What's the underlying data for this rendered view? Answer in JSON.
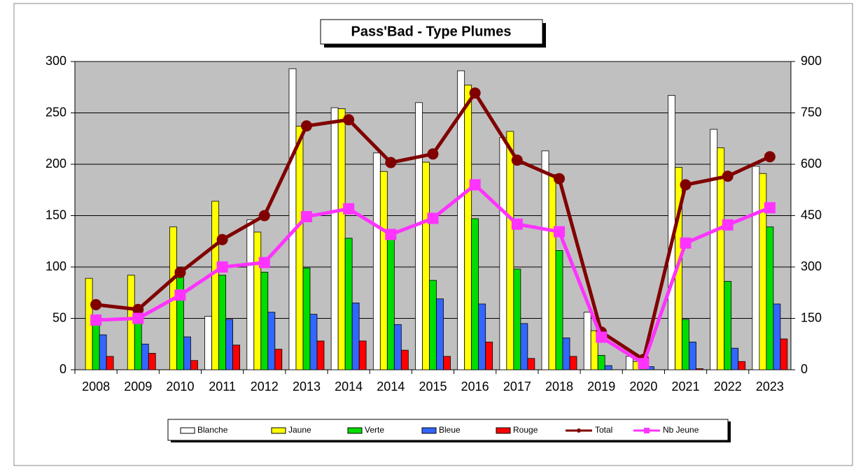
{
  "chart_data": {
    "type": "bar",
    "title": "Pass'Bad - Type Plumes",
    "categories": [
      "2008",
      "2009",
      "2010",
      "2011",
      "2012",
      "2013",
      "2014",
      "2014",
      "2015",
      "2016",
      "2017",
      "2018",
      "2019",
      "2020",
      "2021",
      "2022",
      "2023"
    ],
    "ylim": [
      0,
      300
    ],
    "yticks": [
      0,
      50,
      100,
      150,
      200,
      250,
      300
    ],
    "y2lim": [
      0,
      900
    ],
    "y2ticks": [
      0,
      150,
      300,
      450,
      600,
      750,
      900
    ],
    "grid": true,
    "legend": "bottom",
    "series": [
      {
        "name": "Blanche",
        "type": "bar",
        "color": "#ffffff",
        "values": [
          0,
          0,
          0,
          52,
          146,
          293,
          255,
          211,
          260,
          291,
          226,
          213,
          56,
          13,
          267,
          234,
          198
        ]
      },
      {
        "name": "Jaune",
        "type": "bar",
        "color": "#ffff00",
        "values": [
          89,
          92,
          139,
          164,
          134,
          237,
          254,
          193,
          202,
          277,
          232,
          190,
          38,
          8,
          197,
          216,
          191
        ]
      },
      {
        "name": "Verte",
        "type": "bar",
        "color": "#00dd00",
        "values": [
          49,
          50,
          98,
          92,
          95,
          99,
          128,
          130,
          87,
          147,
          98,
          116,
          14,
          3,
          49,
          86,
          139
        ]
      },
      {
        "name": "Bleue",
        "type": "bar",
        "color": "#3366ff",
        "values": [
          34,
          25,
          32,
          49,
          56,
          54,
          65,
          44,
          69,
          64,
          45,
          31,
          4,
          3,
          27,
          21,
          64
        ]
      },
      {
        "name": "Rouge",
        "type": "bar",
        "color": "#ff0000",
        "values": [
          13,
          16,
          9,
          24,
          20,
          28,
          28,
          19,
          13,
          27,
          11,
          13,
          0,
          0,
          1,
          8,
          30
        ]
      },
      {
        "name": "Total",
        "type": "line",
        "axis": "y2",
        "color": "#800000",
        "values": [
          190,
          176,
          284,
          380,
          450,
          712,
          730,
          605,
          630,
          808,
          612,
          558,
          110,
          30,
          540,
          565,
          622
        ]
      },
      {
        "name": "Nb Jeune",
        "type": "line",
        "axis": "y2",
        "color": "#ff33ff",
        "values": [
          145,
          150,
          218,
          300,
          313,
          447,
          470,
          395,
          442,
          540,
          425,
          403,
          95,
          18,
          370,
          423,
          473
        ]
      }
    ]
  }
}
